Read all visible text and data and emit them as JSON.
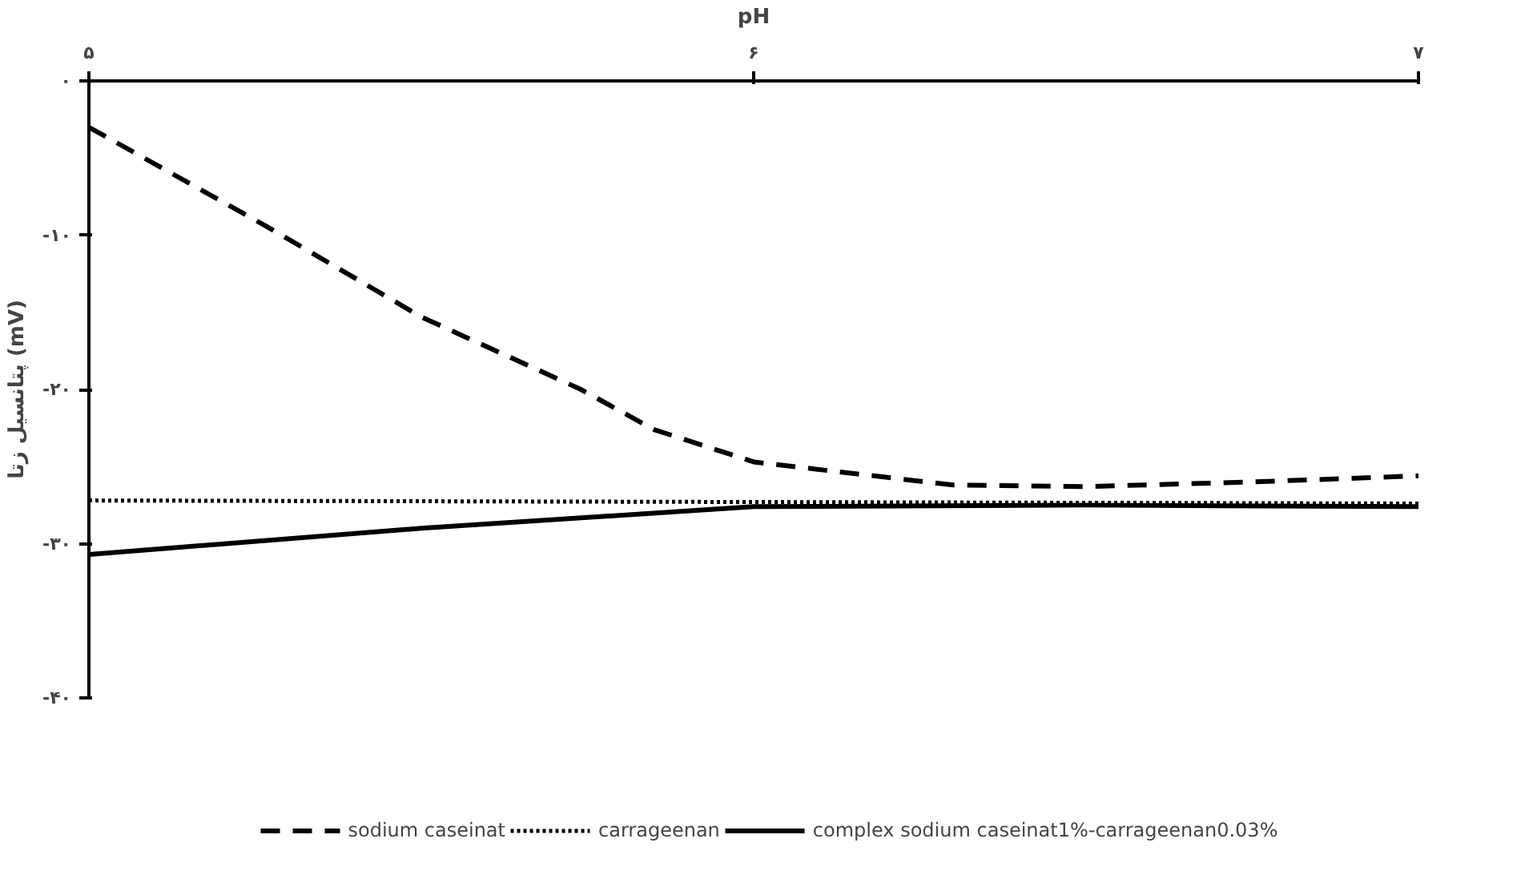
{
  "chart_data": {
    "type": "line",
    "xlabel": "pH",
    "ylabel": "پتانسیل زتا (mV)",
    "xlim": [
      5,
      7
    ],
    "ylim": [
      -40,
      0
    ],
    "xticks": [
      {
        "value": 5,
        "label": "۵"
      },
      {
        "value": 6,
        "label": "۶"
      },
      {
        "value": 7,
        "label": "۷"
      }
    ],
    "yticks": [
      {
        "value": 0,
        "label": "۰"
      },
      {
        "value": -10,
        "label": "-۱۰"
      },
      {
        "value": -20,
        "label": "-۲۰"
      },
      {
        "value": -30,
        "label": "-۳۰"
      },
      {
        "value": -40,
        "label": "-۴۰"
      }
    ],
    "grid": false,
    "legend": "bottom",
    "marker": "none",
    "series": [
      {
        "name": "sodium caseinat",
        "color": "#000000",
        "line_style": "dashed",
        "x": [
          5,
          5.27,
          5.5,
          5.74,
          5.85,
          6,
          6.3,
          6.5,
          6.75,
          7
        ],
        "values": [
          -3,
          -9.5,
          -15.3,
          -20,
          -22.6,
          -24.7,
          -26.2,
          -26.3,
          -26,
          -25.6
        ]
      },
      {
        "name": "carrageenan",
        "color": "#000000",
        "line_style": "dotted",
        "x": [
          5,
          7
        ],
        "values": [
          -27.2,
          -27.4
        ]
      },
      {
        "name": "complex sodium caseinat1%-carrageenan0.03%",
        "color": "#000000",
        "line_style": "solid",
        "x": [
          5,
          5.5,
          6,
          6.5,
          7
        ],
        "values": [
          -30.7,
          -29,
          -27.6,
          -27.5,
          -27.6
        ]
      }
    ]
  }
}
